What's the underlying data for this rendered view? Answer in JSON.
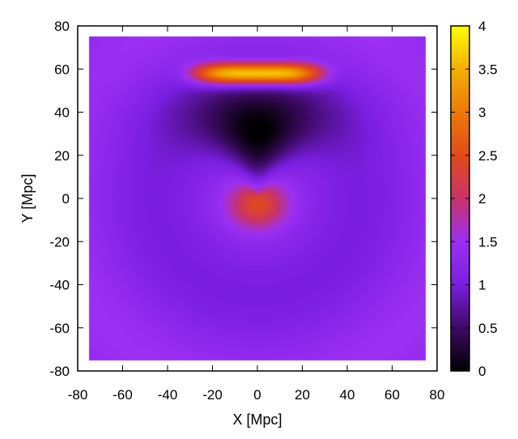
{
  "chart_data": {
    "type": "heatmap",
    "title": "",
    "xlabel": "X [Mpc]",
    "ylabel": "Y [Mpc]",
    "xlim": [
      -80,
      80
    ],
    "ylim": [
      -80,
      80
    ],
    "data_extent": {
      "x": [
        -75,
        75
      ],
      "y": [
        -75,
        75
      ]
    },
    "x_ticks": [
      -80,
      -60,
      -40,
      -20,
      0,
      20,
      40,
      60,
      80
    ],
    "y_ticks": [
      -80,
      -60,
      -40,
      -20,
      0,
      20,
      40,
      60,
      80
    ],
    "x_tick_labels": [
      "-80",
      "-60",
      "-40",
      "-20",
      "0",
      "20",
      "40",
      "60",
      "80"
    ],
    "y_tick_labels": [
      "-80",
      "-60",
      "-40",
      "-20",
      "0",
      "20",
      "40",
      "60",
      "80"
    ],
    "colorbar": {
      "range": [
        0,
        4
      ],
      "ticks": [
        0,
        0.5,
        1,
        1.5,
        2,
        2.5,
        3,
        3.5,
        4
      ],
      "tick_labels": [
        "0",
        "0.5",
        "1",
        "1.5",
        "2",
        "2.5",
        "3",
        "3.5",
        "4"
      ],
      "colormap": "black-purple-red-yellow (gnuplot pm3d default)"
    },
    "background_value": 1.25,
    "features": [
      {
        "shape": "dipole-hot-lobe",
        "center": [
          0,
          -3
        ],
        "size": [
          12,
          10
        ],
        "peak": 2.2
      },
      {
        "shape": "dipole-cold-lobe",
        "center": [
          0,
          28
        ],
        "size": [
          15,
          24
        ],
        "peak": 0.1
      },
      {
        "shape": "arc",
        "center": [
          0,
          58
        ],
        "size": [
          28,
          5
        ],
        "peak": 4.0
      },
      {
        "shape": "shell",
        "radius": 45,
        "amplitude": 0.25
      }
    ],
    "grid": false
  }
}
